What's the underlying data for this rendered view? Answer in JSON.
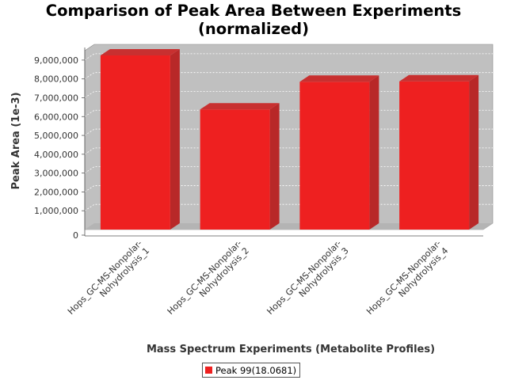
{
  "chart_data": {
    "type": "bar",
    "title_lines": [
      "Comparison of Peak Area Between Experiments",
      "(normalized)"
    ],
    "xlabel": "Mass Spectrum Experiments (Metabolite Profiles)",
    "ylabel": "Peak Area (1e-3)",
    "categories": [
      [
        "Hops_GC-MS-Nonpolar-",
        "Nohydrolysis_1"
      ],
      [
        "Hops_GC-MS-Nonpolar-",
        "Nohydrolysis_2"
      ],
      [
        "Hops_GC-MS-Nonpolar-",
        "Nohydrolysis_3"
      ],
      [
        "Hops_GC-MS-Nonpolar-",
        "Nohydrolysis_4"
      ]
    ],
    "series": [
      {
        "name": "Peak 99(18.0681)",
        "color": "#ee2020",
        "values": [
          9250000,
          6380000,
          7850000,
          7870000
        ]
      }
    ],
    "ylim": [
      0,
      9500000
    ],
    "yticks": [
      0,
      1000000,
      2000000,
      3000000,
      4000000,
      5000000,
      6000000,
      7000000,
      8000000,
      9000000
    ],
    "ytick_labels": [
      "0",
      "1,000,000",
      "2,000,000",
      "3,000,000",
      "4,000,000",
      "5,000,000",
      "6,000,000",
      "7,000,000",
      "8,000,000",
      "9,000,000"
    ],
    "grid": true,
    "legend_position": "bottom",
    "colors": {
      "plot_background": "#c0c0c0",
      "bar": "#ee2020",
      "bar_side": "#b82828",
      "bar_top": "#c83030"
    }
  }
}
